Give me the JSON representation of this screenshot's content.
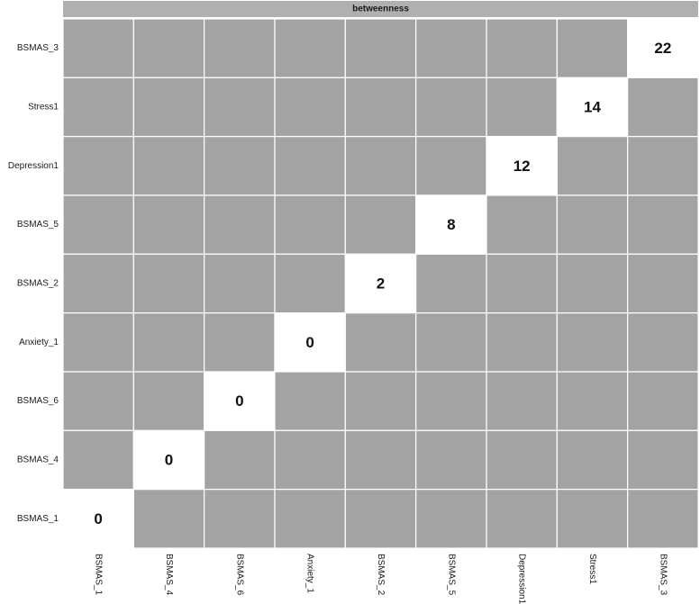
{
  "chart_data": {
    "type": "heatmap",
    "title": "",
    "panel_title": "betweenness",
    "xlabel": "",
    "ylabel": "",
    "columns": [
      "BSMAS_1",
      "BSMAS_4",
      "BSMAS_6",
      "Anxiety_1",
      "BSMAS_2",
      "BSMAS_5",
      "Depression1",
      "Stress1",
      "BSMAS_3"
    ],
    "rows_top_to_bottom": [
      "BSMAS_3",
      "Stress1",
      "Depression1",
      "BSMAS_5",
      "BSMAS_2",
      "Anxiety_1",
      "BSMAS_6",
      "BSMAS_4",
      "BSMAS_1"
    ],
    "cells": [
      {
        "row": "BSMAS_1",
        "col": "BSMAS_1",
        "value": 0
      },
      {
        "row": "BSMAS_4",
        "col": "BSMAS_4",
        "value": 0
      },
      {
        "row": "BSMAS_6",
        "col": "BSMAS_6",
        "value": 0
      },
      {
        "row": "Anxiety_1",
        "col": "Anxiety_1",
        "value": 0
      },
      {
        "row": "BSMAS_2",
        "col": "BSMAS_2",
        "value": 2
      },
      {
        "row": "BSMAS_5",
        "col": "BSMAS_5",
        "value": 8
      },
      {
        "row": "Depression1",
        "col": "Depression1",
        "value": 12
      },
      {
        "row": "Stress1",
        "col": "Stress1",
        "value": 14
      },
      {
        "row": "BSMAS_3",
        "col": "BSMAS_3",
        "value": 22
      }
    ],
    "grid": true,
    "legend": "none",
    "colors": {
      "background_cell": "#a3a3a3",
      "value_cell": "#ffffff",
      "strip": "#b0b0b0",
      "grid_line": "#ffffff"
    }
  }
}
